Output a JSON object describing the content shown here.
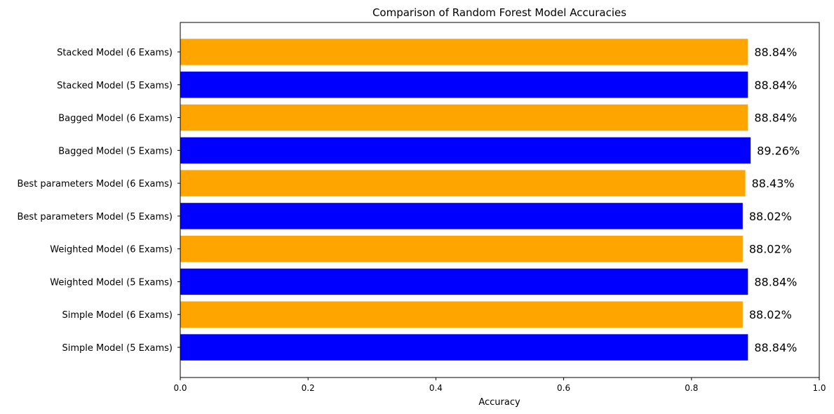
{
  "chart_data": {
    "type": "bar",
    "orientation": "horizontal",
    "title": "Comparison of Random Forest Model Accuracies",
    "xlabel": "Accuracy",
    "ylabel": "",
    "xlim": [
      0,
      1
    ],
    "xticks": [
      "0.0",
      "0.2",
      "0.4",
      "0.6",
      "0.8",
      "1.0"
    ],
    "grid": false,
    "categories": [
      "Simple Model (5 Exams)",
      "Simple Model (6 Exams)",
      "Weighted Model (5 Exams)",
      "Weighted Model (6 Exams)",
      "Best parameters Model (5 Exams)",
      "Best parameters Model (6 Exams)",
      "Bagged Model (5 Exams)",
      "Bagged Model (6 Exams)",
      "Stacked Model (5 Exams)",
      "Stacked Model (6 Exams)"
    ],
    "values": [
      0.8884,
      0.8802,
      0.8884,
      0.8802,
      0.8802,
      0.8843,
      0.8926,
      0.8884,
      0.8884,
      0.8884
    ],
    "value_labels": [
      "88.84%",
      "88.02%",
      "88.84%",
      "88.02%",
      "88.02%",
      "88.43%",
      "89.26%",
      "88.84%",
      "88.84%",
      "88.84%"
    ],
    "bar_colors": [
      "#0000ff",
      "#ffa500",
      "#0000ff",
      "#ffa500",
      "#0000ff",
      "#ffa500",
      "#0000ff",
      "#ffa500",
      "#0000ff",
      "#ffa500"
    ]
  }
}
